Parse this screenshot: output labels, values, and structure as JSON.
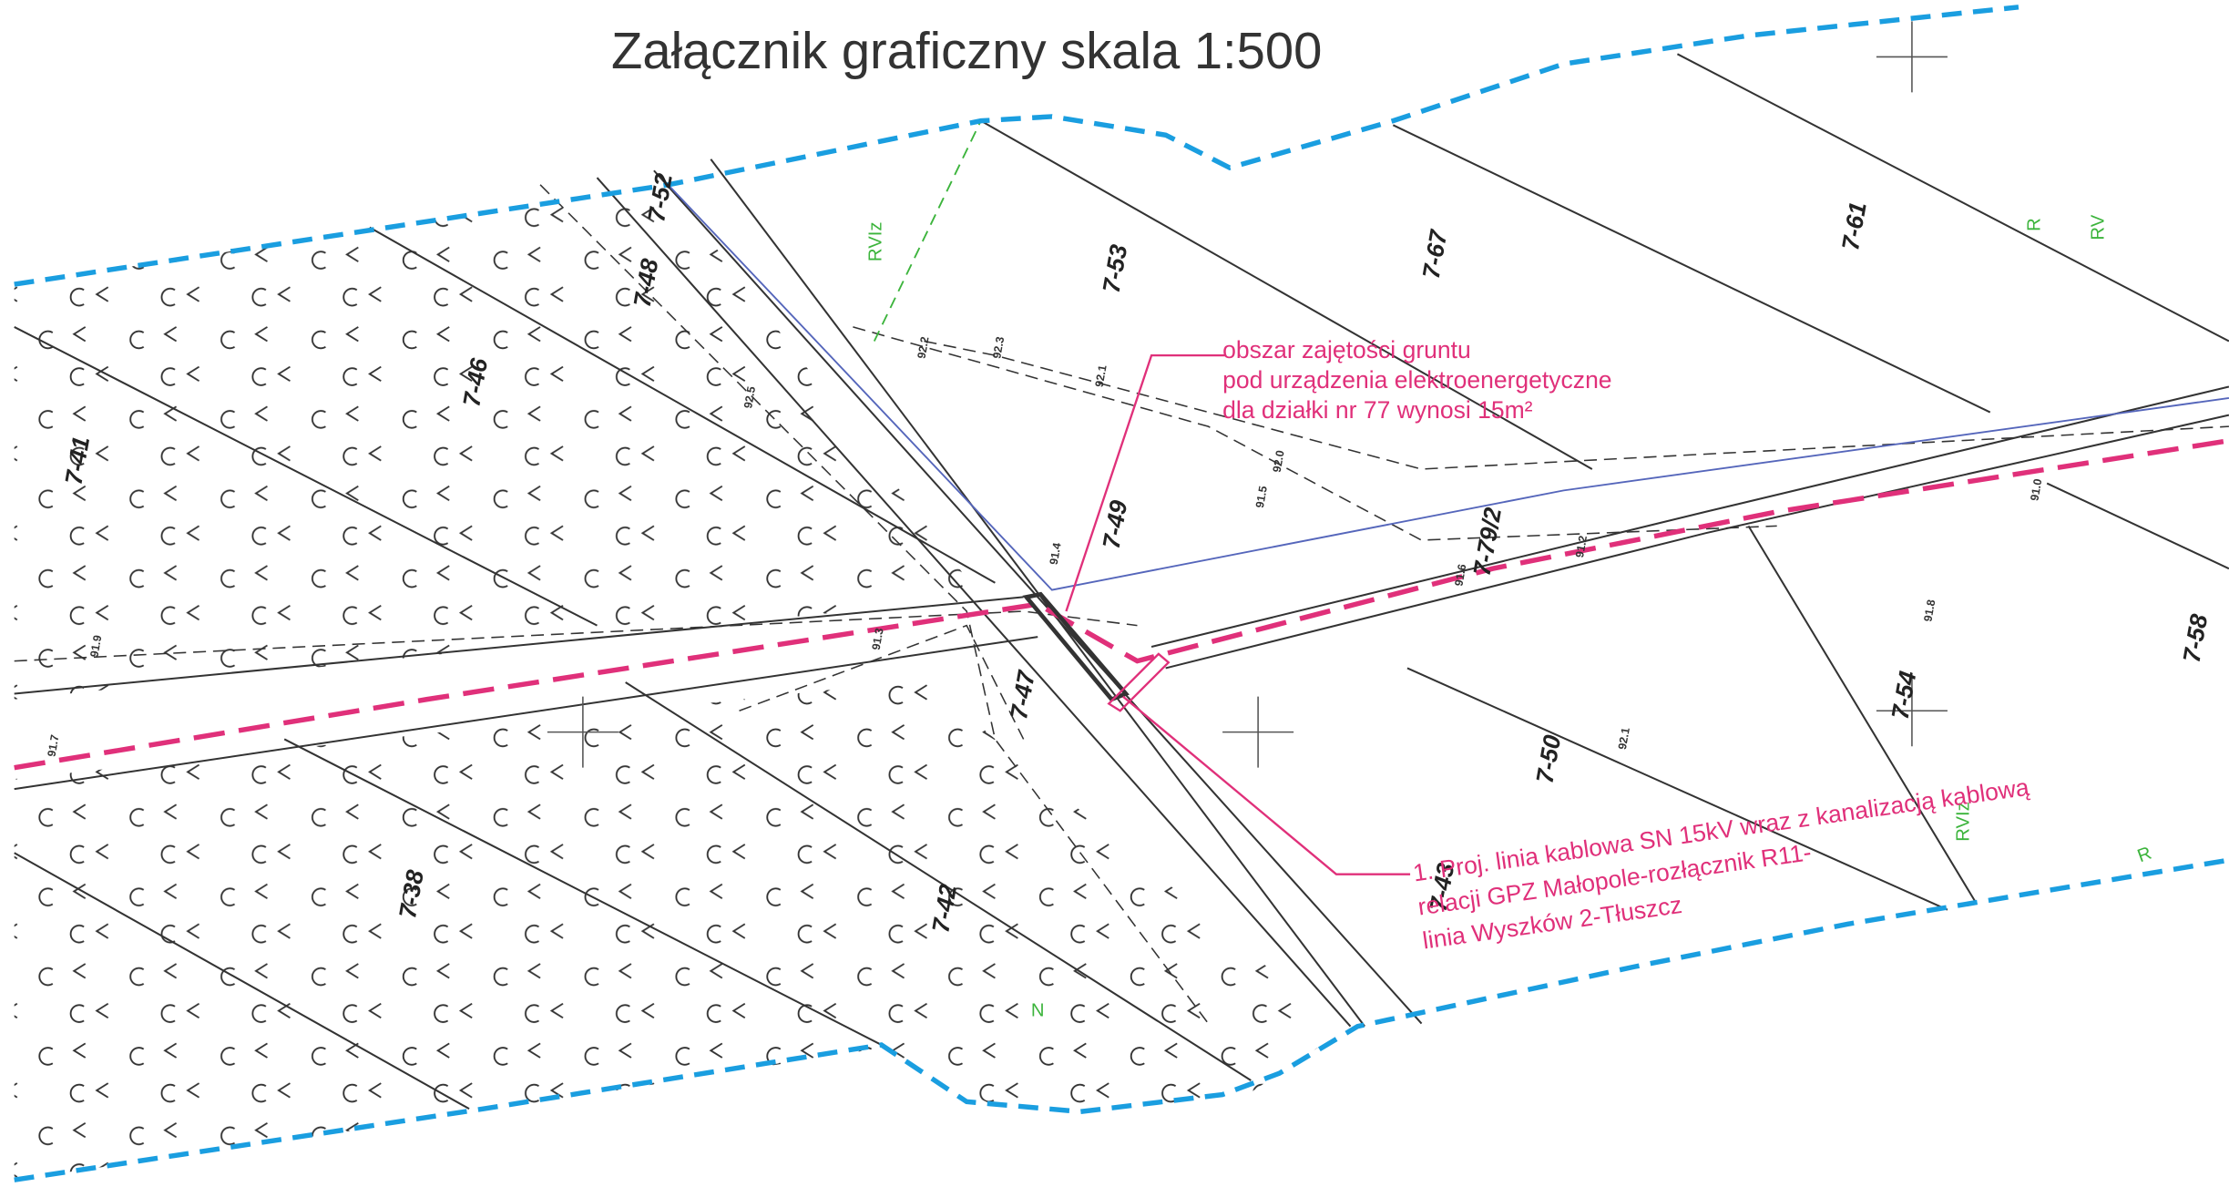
{
  "title": "Załącznik graficzny skala 1:500",
  "parcels": [
    "7-41",
    "7-46",
    "7-48",
    "7-52",
    "7-53",
    "7-67",
    "7-61",
    "7-49",
    "7-79/2",
    "7-47",
    "7-42",
    "7-38",
    "7-50",
    "7-54",
    "7-58",
    "7-43"
  ],
  "land_classes": [
    "RVIz",
    "RV",
    "R",
    "N",
    "R",
    "RVIz"
  ],
  "annotations": [
    {
      "lines": [
        "obszar zajętości gruntu",
        "pod urządzenia elektroenergetyczne",
        "dla działki nr 77 wynosi 15m²"
      ]
    },
    {
      "lines": [
        "1. Proj. linia kablowa SN 15kV wraz z kanalizacją kablową",
        "relacji GPZ Małopole-rozłącznik R11-",
        "linia Wyszków 2-Tłuszcz"
      ]
    }
  ],
  "heights": [
    "92.2",
    "92.3",
    "92.1",
    "92.0",
    "92.5",
    "91.4",
    "91.5",
    "91.3",
    "91.2",
    "91.0",
    "91.8",
    "92.1",
    "91.7",
    "91.9",
    "91.6"
  ]
}
